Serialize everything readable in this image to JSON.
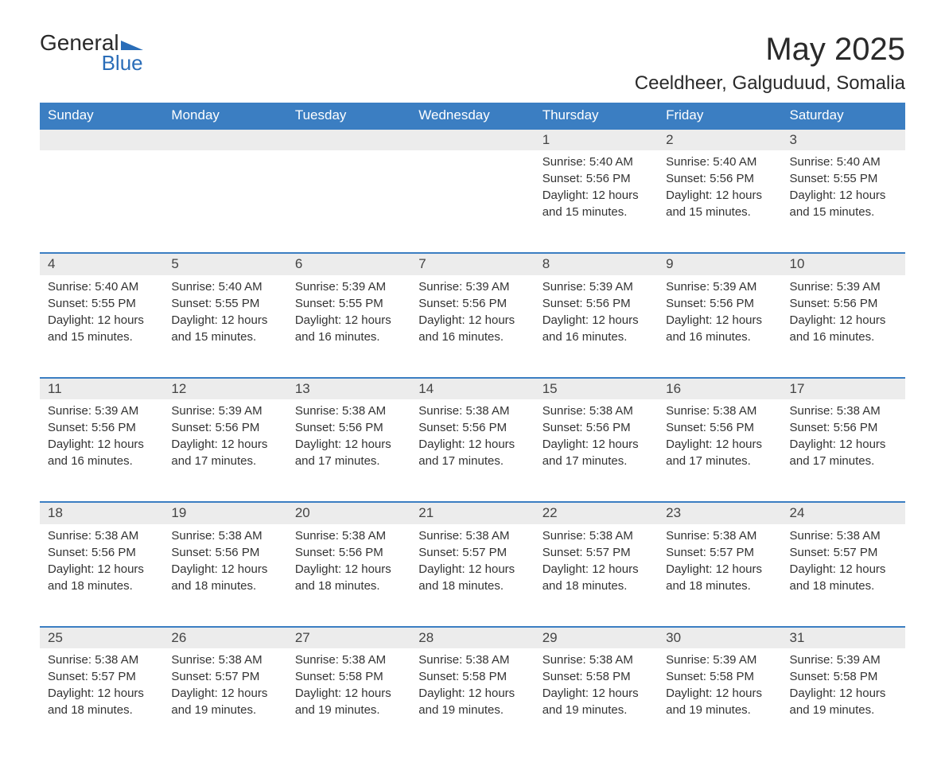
{
  "logo": {
    "word1": "General",
    "word2": "Blue"
  },
  "title": "May 2025",
  "subtitle": "Ceeldheer, Galguduud, Somalia",
  "colors": {
    "header_bg": "#3b7ec2",
    "header_text": "#ffffff",
    "daynum_bg": "#ececec",
    "daynum_border": "#3b7ec2",
    "text": "#333333",
    "page_bg": "#ffffff",
    "logo_blue": "#2a6db8"
  },
  "fonts": {
    "title_size": 40,
    "subtitle_size": 24,
    "weekday_size": 17,
    "body_size": 15
  },
  "weekdays": [
    "Sunday",
    "Monday",
    "Tuesday",
    "Wednesday",
    "Thursday",
    "Friday",
    "Saturday"
  ],
  "weeks": [
    [
      null,
      null,
      null,
      null,
      {
        "n": "1",
        "sunrise": "5:40 AM",
        "sunset": "5:56 PM",
        "daylight": "12 hours and 15 minutes."
      },
      {
        "n": "2",
        "sunrise": "5:40 AM",
        "sunset": "5:56 PM",
        "daylight": "12 hours and 15 minutes."
      },
      {
        "n": "3",
        "sunrise": "5:40 AM",
        "sunset": "5:55 PM",
        "daylight": "12 hours and 15 minutes."
      }
    ],
    [
      {
        "n": "4",
        "sunrise": "5:40 AM",
        "sunset": "5:55 PM",
        "daylight": "12 hours and 15 minutes."
      },
      {
        "n": "5",
        "sunrise": "5:40 AM",
        "sunset": "5:55 PM",
        "daylight": "12 hours and 15 minutes."
      },
      {
        "n": "6",
        "sunrise": "5:39 AM",
        "sunset": "5:55 PM",
        "daylight": "12 hours and 16 minutes."
      },
      {
        "n": "7",
        "sunrise": "5:39 AM",
        "sunset": "5:56 PM",
        "daylight": "12 hours and 16 minutes."
      },
      {
        "n": "8",
        "sunrise": "5:39 AM",
        "sunset": "5:56 PM",
        "daylight": "12 hours and 16 minutes."
      },
      {
        "n": "9",
        "sunrise": "5:39 AM",
        "sunset": "5:56 PM",
        "daylight": "12 hours and 16 minutes."
      },
      {
        "n": "10",
        "sunrise": "5:39 AM",
        "sunset": "5:56 PM",
        "daylight": "12 hours and 16 minutes."
      }
    ],
    [
      {
        "n": "11",
        "sunrise": "5:39 AM",
        "sunset": "5:56 PM",
        "daylight": "12 hours and 16 minutes."
      },
      {
        "n": "12",
        "sunrise": "5:39 AM",
        "sunset": "5:56 PM",
        "daylight": "12 hours and 17 minutes."
      },
      {
        "n": "13",
        "sunrise": "5:38 AM",
        "sunset": "5:56 PM",
        "daylight": "12 hours and 17 minutes."
      },
      {
        "n": "14",
        "sunrise": "5:38 AM",
        "sunset": "5:56 PM",
        "daylight": "12 hours and 17 minutes."
      },
      {
        "n": "15",
        "sunrise": "5:38 AM",
        "sunset": "5:56 PM",
        "daylight": "12 hours and 17 minutes."
      },
      {
        "n": "16",
        "sunrise": "5:38 AM",
        "sunset": "5:56 PM",
        "daylight": "12 hours and 17 minutes."
      },
      {
        "n": "17",
        "sunrise": "5:38 AM",
        "sunset": "5:56 PM",
        "daylight": "12 hours and 17 minutes."
      }
    ],
    [
      {
        "n": "18",
        "sunrise": "5:38 AM",
        "sunset": "5:56 PM",
        "daylight": "12 hours and 18 minutes."
      },
      {
        "n": "19",
        "sunrise": "5:38 AM",
        "sunset": "5:56 PM",
        "daylight": "12 hours and 18 minutes."
      },
      {
        "n": "20",
        "sunrise": "5:38 AM",
        "sunset": "5:56 PM",
        "daylight": "12 hours and 18 minutes."
      },
      {
        "n": "21",
        "sunrise": "5:38 AM",
        "sunset": "5:57 PM",
        "daylight": "12 hours and 18 minutes."
      },
      {
        "n": "22",
        "sunrise": "5:38 AM",
        "sunset": "5:57 PM",
        "daylight": "12 hours and 18 minutes."
      },
      {
        "n": "23",
        "sunrise": "5:38 AM",
        "sunset": "5:57 PM",
        "daylight": "12 hours and 18 minutes."
      },
      {
        "n": "24",
        "sunrise": "5:38 AM",
        "sunset": "5:57 PM",
        "daylight": "12 hours and 18 minutes."
      }
    ],
    [
      {
        "n": "25",
        "sunrise": "5:38 AM",
        "sunset": "5:57 PM",
        "daylight": "12 hours and 18 minutes."
      },
      {
        "n": "26",
        "sunrise": "5:38 AM",
        "sunset": "5:57 PM",
        "daylight": "12 hours and 19 minutes."
      },
      {
        "n": "27",
        "sunrise": "5:38 AM",
        "sunset": "5:58 PM",
        "daylight": "12 hours and 19 minutes."
      },
      {
        "n": "28",
        "sunrise": "5:38 AM",
        "sunset": "5:58 PM",
        "daylight": "12 hours and 19 minutes."
      },
      {
        "n": "29",
        "sunrise": "5:38 AM",
        "sunset": "5:58 PM",
        "daylight": "12 hours and 19 minutes."
      },
      {
        "n": "30",
        "sunrise": "5:39 AM",
        "sunset": "5:58 PM",
        "daylight": "12 hours and 19 minutes."
      },
      {
        "n": "31",
        "sunrise": "5:39 AM",
        "sunset": "5:58 PM",
        "daylight": "12 hours and 19 minutes."
      }
    ]
  ],
  "labels": {
    "sunrise": "Sunrise: ",
    "sunset": "Sunset: ",
    "daylight": "Daylight: "
  }
}
